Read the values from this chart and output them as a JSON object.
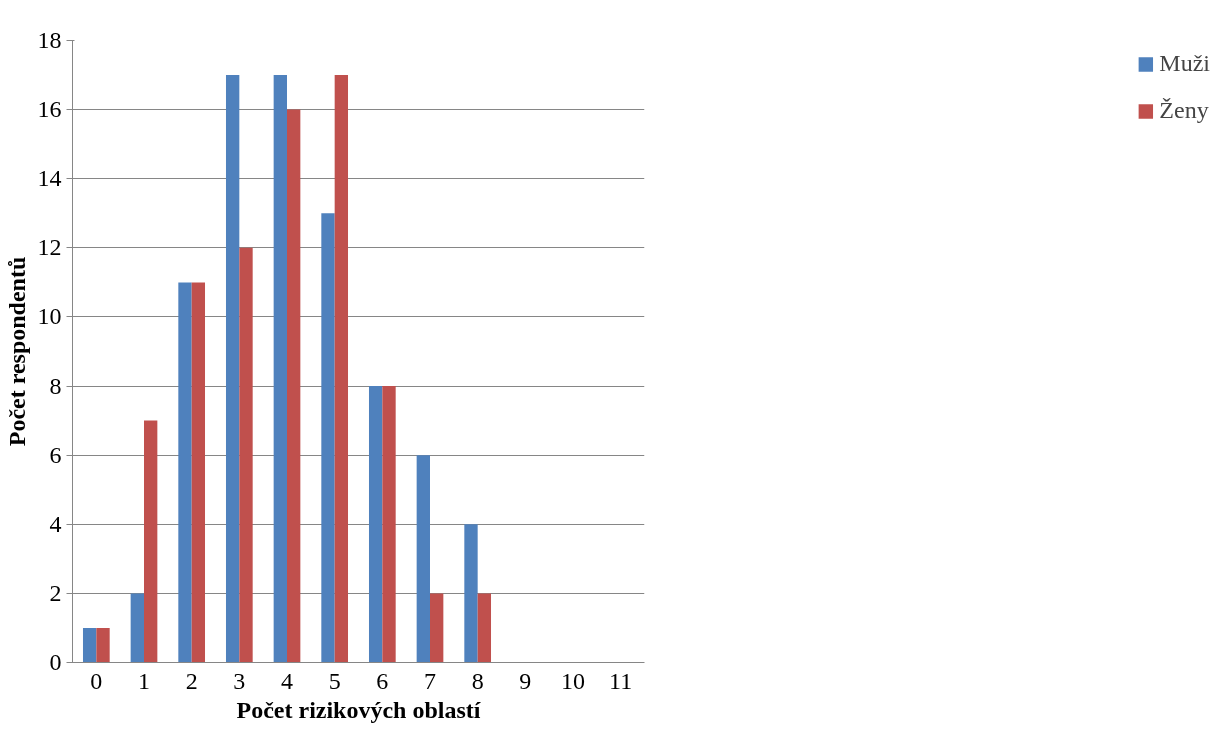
{
  "chart_data": {
    "type": "bar",
    "xlabel": "Počet rizikových oblastí",
    "ylabel": "Počet respondentů",
    "categories": [
      "0",
      "1",
      "2",
      "3",
      "4",
      "5",
      "6",
      "7",
      "8",
      "9",
      "10",
      "11"
    ],
    "series": [
      {
        "name": "Muži",
        "color": "#4f81bd",
        "values": [
          1,
          2,
          11,
          17,
          17,
          13,
          8,
          6,
          4,
          0,
          0,
          0
        ]
      },
      {
        "name": "Ženy",
        "color": "#c0504d",
        "values": [
          1,
          7,
          11,
          12,
          16,
          17,
          8,
          2,
          2,
          0,
          0,
          0
        ]
      }
    ],
    "ylim": [
      0,
      18
    ],
    "yticks": [
      0,
      2,
      4,
      6,
      8,
      10,
      12,
      14,
      16,
      18
    ],
    "grid": "y",
    "legend": "right"
  }
}
